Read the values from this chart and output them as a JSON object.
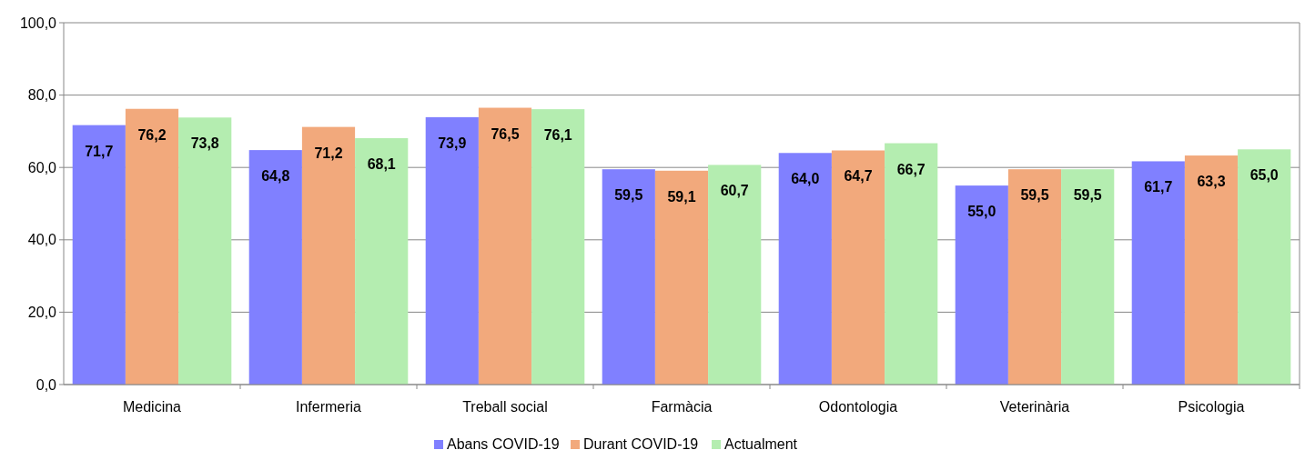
{
  "chart_data": {
    "type": "bar",
    "categories": [
      "Medicina",
      "Infermeria",
      "Treball social",
      "Farmàcia",
      "Odontologia",
      "Veterinària",
      "Psicologia"
    ],
    "series": [
      {
        "name": "Abans COVID-19",
        "color": "#8080ff",
        "values": [
          71.7,
          64.8,
          73.9,
          59.5,
          64.0,
          55.0,
          61.7
        ],
        "value_labels": [
          "71,7",
          "64,8",
          "73,9",
          "59,5",
          "64,0",
          "55,0",
          "61,7"
        ]
      },
      {
        "name": "Durant COVID-19",
        "color": "#f2a97c",
        "values": [
          76.2,
          71.2,
          76.5,
          59.1,
          64.7,
          59.5,
          63.3
        ],
        "value_labels": [
          "76,2",
          "71,2",
          "76,5",
          "59,1",
          "64,7",
          "59,5",
          "63,3"
        ]
      },
      {
        "name": "Actualment",
        "color": "#b4edb0",
        "values": [
          73.8,
          68.1,
          76.1,
          60.7,
          66.7,
          59.5,
          65.0
        ],
        "value_labels": [
          "73,8",
          "68,1",
          "76,1",
          "60,7",
          "66,7",
          "59,5",
          "65,0"
        ]
      }
    ],
    "ylim": [
      0,
      100
    ],
    "yticks": [
      {
        "value": 0,
        "label": "0,0"
      },
      {
        "value": 20,
        "label": "20,0"
      },
      {
        "value": 40,
        "label": "40,0"
      },
      {
        "value": 60,
        "label": "60,0"
      },
      {
        "value": 80,
        "label": "80,0"
      },
      {
        "value": 100,
        "label": "100,0"
      }
    ],
    "grid": "y",
    "legend": "bottom"
  }
}
